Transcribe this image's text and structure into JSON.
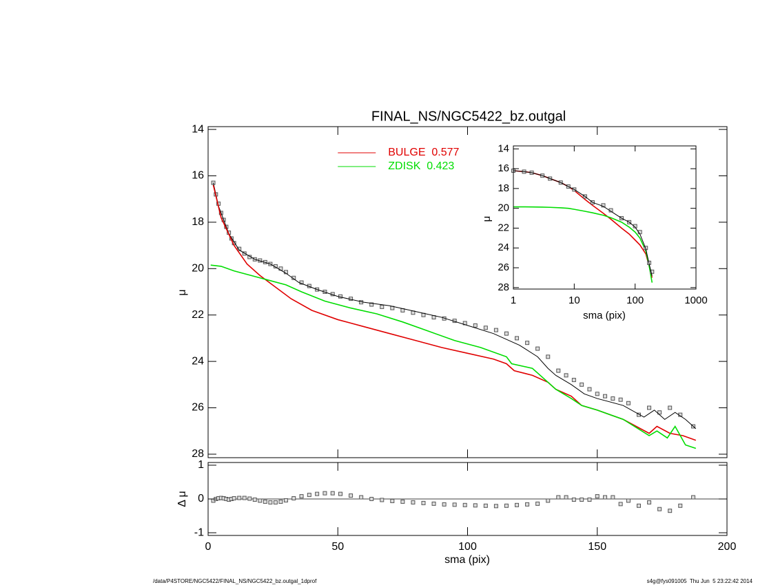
{
  "chart_data": [
    {
      "type": "line",
      "title": "FINAL_NS/NGC5422_bz.outgal",
      "y_label": "μ",
      "xlim": [
        0,
        200
      ],
      "xticks": [
        0,
        50,
        100,
        150,
        200
      ],
      "xtick_labels": false,
      "ylim": [
        28.15,
        13.88
      ],
      "yticks": [
        14,
        16,
        18,
        20,
        22,
        24,
        26,
        28
      ],
      "legend": "upper center",
      "series": [
        {
          "style": "markers",
          "color": "#555555",
          "x": [
            2,
            3,
            4,
            5,
            6,
            7,
            8,
            9,
            10,
            12,
            14,
            16,
            18,
            20,
            22,
            24,
            26,
            28,
            30,
            33,
            36,
            39,
            42,
            45,
            48,
            51,
            55,
            59,
            63,
            67,
            71,
            75,
            79,
            83,
            87,
            91,
            95,
            99,
            103,
            107,
            111,
            115,
            119,
            123,
            127,
            131,
            135,
            138,
            141,
            144,
            147,
            150,
            153,
            156,
            159,
            162,
            166,
            170,
            174,
            178,
            182,
            187
          ],
          "values": [
            16.3,
            16.8,
            17.2,
            17.6,
            17.9,
            18.2,
            18.45,
            18.7,
            18.9,
            19.15,
            19.35,
            19.5,
            19.6,
            19.65,
            19.72,
            19.8,
            19.9,
            20.0,
            20.15,
            20.4,
            20.6,
            20.75,
            20.9,
            21.0,
            21.1,
            21.2,
            21.3,
            21.45,
            21.55,
            21.65,
            21.7,
            21.8,
            21.9,
            22.0,
            22.1,
            22.15,
            22.25,
            22.35,
            22.45,
            22.55,
            22.65,
            22.8,
            23.0,
            23.2,
            23.45,
            23.8,
            24.4,
            24.6,
            24.8,
            25.0,
            25.2,
            25.4,
            25.5,
            25.6,
            25.65,
            25.8,
            26.3,
            26.0,
            26.2,
            26.0,
            26.3,
            26.8
          ]
        },
        {
          "style": "line",
          "color": "#000000",
          "x": [
            2,
            4,
            8,
            12,
            18,
            24,
            30,
            35,
            42,
            50,
            60,
            70,
            80,
            90,
            100,
            110,
            120,
            127,
            131,
            134,
            140,
            145,
            150,
            160,
            168,
            172,
            176,
            180,
            184,
            188
          ],
          "values": [
            16.3,
            17.3,
            18.5,
            19.2,
            19.6,
            19.8,
            20.2,
            20.6,
            20.9,
            21.2,
            21.45,
            21.6,
            21.85,
            22.1,
            22.45,
            22.8,
            23.3,
            23.8,
            24.3,
            24.6,
            25.0,
            25.4,
            25.6,
            25.9,
            26.4,
            26.1,
            26.5,
            26.2,
            26.5,
            26.9
          ]
        },
        {
          "name": "BULGE  0.577",
          "style": "line",
          "color": "#e00000",
          "x": [
            2,
            5,
            10,
            15,
            20,
            26,
            32,
            40,
            50,
            60,
            70,
            80,
            90,
            100,
            110,
            115,
            118,
            125,
            131,
            134,
            140,
            144,
            150,
            160,
            170,
            173,
            178,
            183,
            188
          ],
          "values": [
            16.4,
            17.8,
            19.0,
            19.8,
            20.3,
            20.8,
            21.3,
            21.8,
            22.2,
            22.5,
            22.8,
            23.1,
            23.4,
            23.65,
            23.9,
            24.1,
            24.4,
            24.6,
            24.9,
            25.2,
            25.5,
            25.9,
            26.1,
            26.5,
            27.1,
            26.8,
            27.1,
            27.2,
            27.4
          ]
        },
        {
          "name": "ZDISK  0.423",
          "style": "line",
          "color": "#00dd00",
          "x": [
            1,
            5,
            10,
            20,
            30,
            36,
            45,
            55,
            65,
            75,
            85,
            95,
            105,
            115,
            117,
            125,
            130,
            134,
            140,
            144,
            150,
            160,
            170,
            173,
            177,
            180,
            184,
            188
          ],
          "values": [
            19.85,
            19.9,
            20.1,
            20.4,
            20.7,
            21.0,
            21.4,
            21.7,
            21.95,
            22.3,
            22.7,
            23.1,
            23.4,
            23.8,
            24.1,
            24.3,
            24.8,
            25.2,
            25.6,
            25.9,
            26.1,
            26.5,
            27.2,
            27.0,
            27.3,
            26.8,
            27.6,
            27.75
          ]
        }
      ]
    },
    {
      "type": "scatter",
      "x_label": "sma (pix)",
      "y_label": "Δ μ",
      "xlim": [
        0,
        200
      ],
      "xticks": [
        0,
        50,
        100,
        150,
        200
      ],
      "ylim": [
        -1.08,
        1.08
      ],
      "yticks": [
        -1,
        0,
        1
      ],
      "hline": 0,
      "series": [
        {
          "style": "markers",
          "color": "#555555",
          "x": [
            2,
            3,
            4,
            5,
            6,
            7,
            8,
            9,
            10,
            12,
            14,
            16,
            18,
            20,
            22,
            24,
            26,
            28,
            30,
            33,
            36,
            39,
            42,
            45,
            48,
            51,
            55,
            59,
            63,
            67,
            71,
            75,
            79,
            83,
            87,
            91,
            95,
            99,
            103,
            107,
            111,
            115,
            119,
            123,
            127,
            131,
            135,
            138,
            141,
            144,
            147,
            150,
            153,
            156,
            159,
            162,
            166,
            170,
            174,
            178,
            182,
            187
          ],
          "values": [
            -0.05,
            0,
            0.02,
            0.03,
            0.02,
            0,
            -0.02,
            0,
            0.02,
            0.03,
            0.03,
            0.01,
            -0.02,
            -0.05,
            -0.08,
            -0.1,
            -0.1,
            -0.08,
            -0.04,
            0.02,
            0.08,
            0.12,
            0.15,
            0.17,
            0.17,
            0.15,
            0.1,
            0.05,
            0,
            -0.03,
            -0.06,
            -0.08,
            -0.1,
            -0.12,
            -0.14,
            -0.16,
            -0.17,
            -0.18,
            -0.19,
            -0.2,
            -0.21,
            -0.2,
            -0.18,
            -0.16,
            -0.14,
            -0.05,
            0.05,
            0.05,
            -0.02,
            -0.02,
            -0.02,
            0.08,
            0.05,
            0.05,
            -0.15,
            -0.05,
            -0.2,
            -0.1,
            -0.3,
            -0.35,
            -0.2,
            0.05
          ]
        }
      ]
    },
    {
      "type": "line",
      "x_label": "sma (pix)",
      "y_label": "μ",
      "xlog": true,
      "xlim": [
        1,
        1000
      ],
      "xticks": [
        1,
        10,
        100,
        1000
      ],
      "ylim": [
        28.15,
        13.7
      ],
      "yticks": [
        14,
        16,
        18,
        20,
        22,
        24,
        26,
        28
      ],
      "series": [
        {
          "style": "line",
          "color": "#e00000",
          "x": [
            1,
            1.5,
            2,
            3,
            4,
            6,
            8,
            10,
            15,
            20,
            30,
            40,
            60,
            80,
            100,
            120,
            150,
            170,
            190
          ],
          "values": [
            16.2,
            16.3,
            16.4,
            16.7,
            17.0,
            17.4,
            17.8,
            18.2,
            19.1,
            19.7,
            20.5,
            21.1,
            22.0,
            22.6,
            23.2,
            23.7,
            24.6,
            25.8,
            27.0
          ]
        },
        {
          "style": "line",
          "color": "#00dd00",
          "x": [
            1,
            1.5,
            2,
            3,
            4,
            6,
            8,
            10,
            15,
            20,
            30,
            40,
            60,
            80,
            100,
            120,
            150,
            170,
            190
          ],
          "values": [
            19.85,
            19.85,
            19.86,
            19.88,
            19.9,
            19.95,
            20.0,
            20.1,
            20.3,
            20.45,
            20.7,
            20.95,
            21.4,
            21.9,
            22.4,
            23.0,
            24.3,
            25.8,
            27.5
          ]
        },
        {
          "style": "markers",
          "color": "#555555",
          "x": [
            1,
            1.5,
            2,
            3,
            4,
            6,
            8,
            10,
            15,
            20,
            30,
            40,
            60,
            80,
            100,
            120,
            150,
            170,
            190
          ],
          "values": [
            16.2,
            16.3,
            16.4,
            16.7,
            17.0,
            17.4,
            17.8,
            18.1,
            18.8,
            19.4,
            19.7,
            20.2,
            21.0,
            21.4,
            21.8,
            22.4,
            24.0,
            25.5,
            26.4
          ]
        },
        {
          "style": "line",
          "color": "#000000",
          "x": [
            1,
            1.5,
            2,
            3,
            4,
            6,
            8,
            10,
            15,
            20,
            30,
            40,
            60,
            80,
            100,
            120,
            150,
            170,
            190
          ],
          "values": [
            16.2,
            16.3,
            16.4,
            16.7,
            17.0,
            17.4,
            17.8,
            18.1,
            18.8,
            19.4,
            19.8,
            20.3,
            21.0,
            21.4,
            21.9,
            22.6,
            24.1,
            25.6,
            26.8
          ]
        }
      ]
    }
  ],
  "footer": {
    "left": "/data/P4STORE/NGC5422/FINAL_NS/NGC5422_bz.outgal_1dprof",
    "right": "s4g@fys091005  Thu Jun  5 23:22:42 2014"
  }
}
